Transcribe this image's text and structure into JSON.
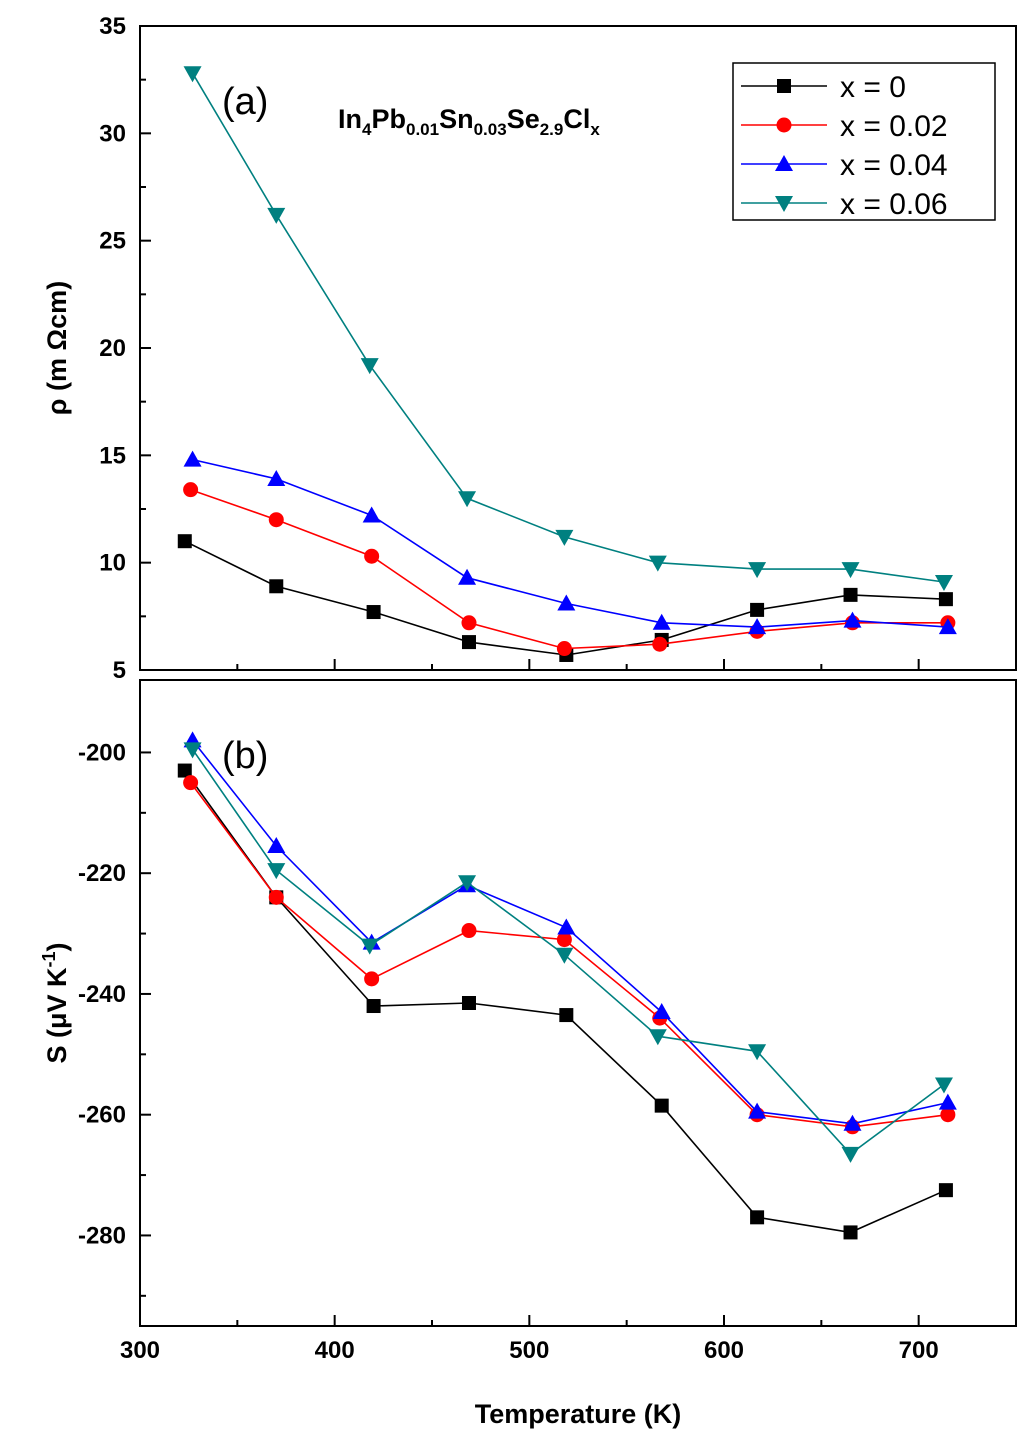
{
  "chart_data": [
    {
      "type": "line",
      "panel_label": "(a)",
      "annotation": {
        "parts": [
          {
            "t": "In",
            "s": "base"
          },
          {
            "t": "4",
            "s": "sub"
          },
          {
            "t": "Pb",
            "s": "base"
          },
          {
            "t": "0.01",
            "s": "sub"
          },
          {
            "t": "Sn",
            "s": "base"
          },
          {
            "t": "0.03",
            "s": "sub"
          },
          {
            "t": "Se",
            "s": "base"
          },
          {
            "t": "2.9",
            "s": "sub"
          },
          {
            "t": "Cl",
            "s": "base"
          },
          {
            "t": "x",
            "s": "sub"
          }
        ]
      },
      "ylabel": "ρ (m Ωcm)",
      "xlabel": "",
      "xlim": [
        300,
        750
      ],
      "ylim": [
        5,
        35
      ],
      "yticks": [
        5,
        10,
        15,
        20,
        25,
        30,
        35
      ],
      "ytick_labels": [
        "5",
        "10",
        "15",
        "20",
        "25",
        "30",
        "35"
      ],
      "legend": {
        "position": "top-right"
      },
      "series": [
        {
          "name": "x = 0",
          "color": "#000000",
          "marker": "square",
          "x": [
            323,
            370,
            420,
            469,
            519,
            568,
            617,
            665,
            714
          ],
          "y": [
            11.0,
            8.9,
            7.7,
            6.3,
            5.7,
            6.4,
            7.8,
            8.5,
            8.3
          ]
        },
        {
          "name": "x = 0.02",
          "color": "#ff0000",
          "marker": "circle",
          "x": [
            326,
            370,
            419,
            469,
            518,
            567,
            617,
            666,
            715
          ],
          "y": [
            13.4,
            12.0,
            10.3,
            7.2,
            6.0,
            6.2,
            6.8,
            7.2,
            7.2
          ]
        },
        {
          "name": "x = 0.04",
          "color": "#0000ff",
          "marker": "triangle-up",
          "x": [
            327,
            370,
            419,
            468,
            519,
            568,
            617,
            666,
            715
          ],
          "y": [
            14.8,
            13.9,
            12.2,
            9.3,
            8.1,
            7.2,
            7.0,
            7.3,
            7.0
          ]
        },
        {
          "name": "x = 0.06",
          "color": "#008080",
          "marker": "triangle-down",
          "x": [
            327,
            370,
            418,
            468,
            518,
            566,
            617,
            665,
            713
          ],
          "y": [
            32.8,
            26.2,
            19.2,
            13.0,
            11.2,
            10.0,
            9.7,
            9.7,
            9.1
          ]
        }
      ]
    },
    {
      "type": "line",
      "panel_label": "(b)",
      "ylabel": "S (μV K",
      "ylabel_sup": "-1",
      "ylabel_close": ")",
      "xlabel": "Temperature (K)",
      "xlim": [
        300,
        750
      ],
      "xticks": [
        300,
        400,
        500,
        600,
        700
      ],
      "xtick_labels": [
        "300",
        "400",
        "500",
        "600",
        "700"
      ],
      "ylim": [
        -295,
        -188
      ],
      "yticks": [
        -200,
        -220,
        -240,
        -260,
        -280
      ],
      "ytick_labels": [
        "-200",
        "-220",
        "-240",
        "-260",
        "-280"
      ],
      "series": [
        {
          "name": "x = 0",
          "color": "#000000",
          "marker": "square",
          "x": [
            323,
            370,
            420,
            469,
            519,
            568,
            617,
            665,
            714
          ],
          "y": [
            -203,
            -224,
            -242,
            -241.5,
            -243.5,
            -258.5,
            -277,
            -279.5,
            -272.5
          ]
        },
        {
          "name": "x = 0.02",
          "color": "#ff0000",
          "marker": "circle",
          "x": [
            326,
            370,
            419,
            469,
            518,
            567,
            617,
            666,
            715
          ],
          "y": [
            -205,
            -224,
            -237.5,
            -229.5,
            -231,
            -244,
            -260,
            -262,
            -260
          ]
        },
        {
          "name": "x = 0.04",
          "color": "#0000ff",
          "marker": "triangle-up",
          "x": [
            327,
            370,
            419,
            468,
            519,
            568,
            617,
            666,
            715
          ],
          "y": [
            -198,
            -215.5,
            -231.5,
            -222,
            -229,
            -243,
            -259.5,
            -261.5,
            -258
          ]
        },
        {
          "name": "x = 0.06",
          "color": "#008080",
          "marker": "triangle-down",
          "x": [
            327,
            370,
            418,
            468,
            518,
            566,
            617,
            665,
            713
          ],
          "y": [
            -199.5,
            -219.5,
            -232,
            -221.5,
            -233.5,
            -247,
            -249.5,
            -266.5,
            -255
          ]
        }
      ]
    }
  ]
}
